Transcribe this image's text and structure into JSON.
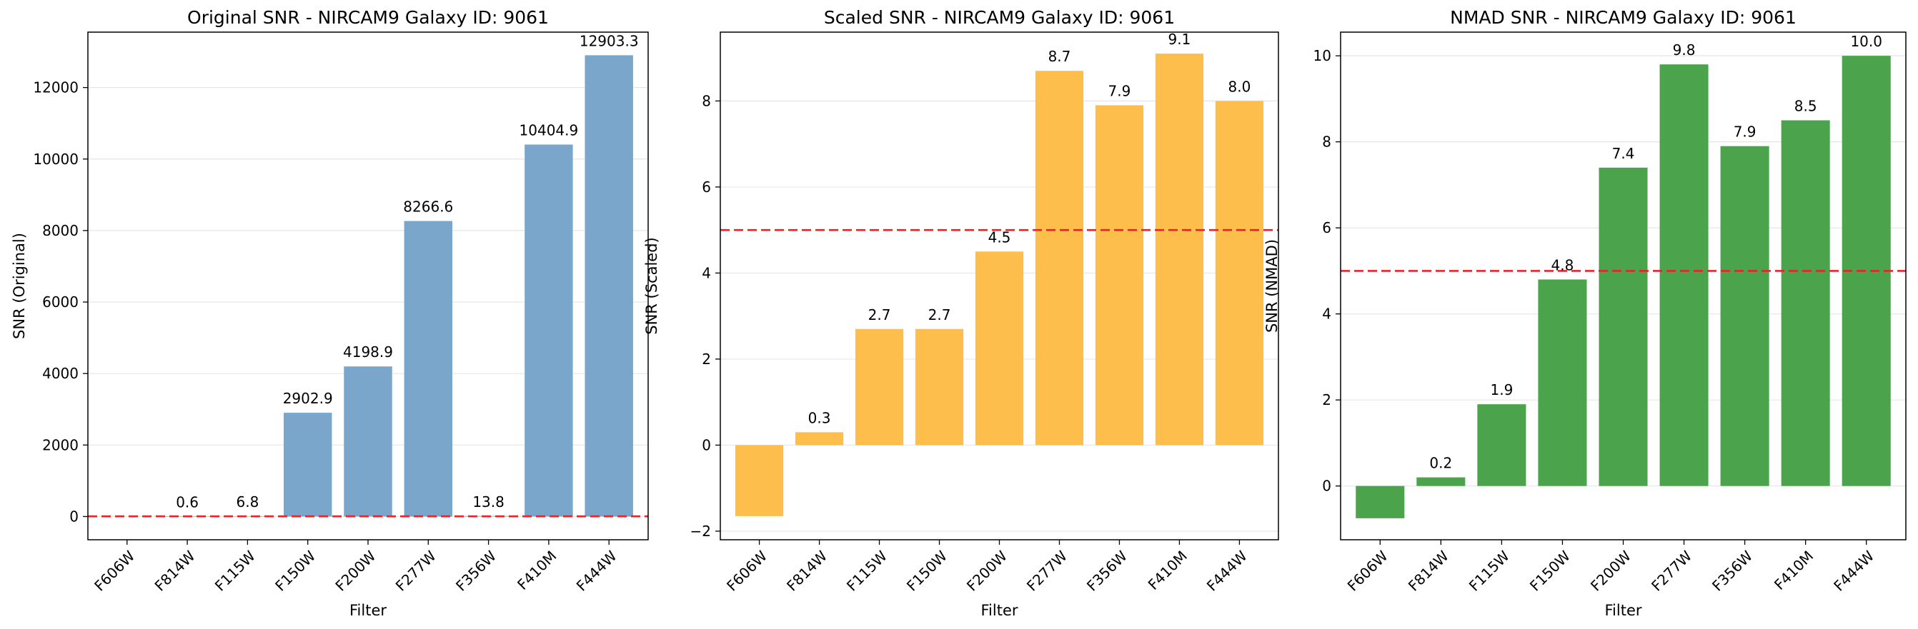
{
  "chart_data": [
    {
      "type": "bar",
      "title": "Original SNR - NIRCAM9 Galaxy ID: 9061",
      "xlabel": "Filter",
      "ylabel": "SNR (Original)",
      "categories": [
        "F606W",
        "F814W",
        "F115W",
        "F150W",
        "F200W",
        "F277W",
        "F356W",
        "F410M",
        "F444W"
      ],
      "values": [
        null,
        0.6,
        6.8,
        2902.9,
        4198.9,
        8266.6,
        13.8,
        10404.9,
        12903.3
      ],
      "data_labels": [
        "",
        "0.6",
        "6.8",
        "2902.9",
        "4198.9",
        "8266.6",
        "13.8",
        "10404.9",
        "12903.3"
      ],
      "ylim": [
        -650,
        13550
      ],
      "yticks": [
        0,
        2000,
        4000,
        6000,
        8000,
        10000,
        12000
      ],
      "ytick_labels": [
        "0",
        "2000",
        "4000",
        "6000",
        "8000",
        "10000",
        "12000"
      ],
      "threshold": 5,
      "bar_color": "#7ba6cc",
      "threshold_color": "#e8232a",
      "grid": true
    },
    {
      "type": "bar",
      "title": "Scaled SNR - NIRCAM9 Galaxy ID: 9061",
      "xlabel": "Filter",
      "ylabel": "SNR (Scaled)",
      "categories": [
        "F606W",
        "F814W",
        "F115W",
        "F150W",
        "F200W",
        "F277W",
        "F356W",
        "F410M",
        "F444W"
      ],
      "values": [
        -1.65,
        0.3,
        2.7,
        2.7,
        4.5,
        8.7,
        7.9,
        9.1,
        8.0
      ],
      "data_labels": [
        "",
        "0.3",
        "2.7",
        "2.7",
        "4.5",
        "8.7",
        "7.9",
        "9.1",
        "8.0"
      ],
      "ylim": [
        -2.2,
        9.6
      ],
      "yticks": [
        -2,
        0,
        2,
        4,
        6,
        8
      ],
      "ytick_labels": [
        "−2",
        "0",
        "2",
        "4",
        "6",
        "8"
      ],
      "threshold": 5,
      "bar_color": "#fdbe4c",
      "threshold_color": "#e8232a",
      "grid": true
    },
    {
      "type": "bar",
      "title": "NMAD SNR - NIRCAM9 Galaxy ID: 9061",
      "xlabel": "Filter",
      "ylabel": "SNR (NMAD)",
      "categories": [
        "F606W",
        "F814W",
        "F115W",
        "F150W",
        "F200W",
        "F277W",
        "F356W",
        "F410M",
        "F444W"
      ],
      "values": [
        -0.75,
        0.2,
        1.9,
        4.8,
        7.4,
        9.8,
        7.9,
        8.5,
        10.0
      ],
      "data_labels": [
        "",
        "0.2",
        "1.9",
        "4.8",
        "7.4",
        "9.8",
        "7.9",
        "8.5",
        "10.0"
      ],
      "ylim": [
        -1.25,
        10.55
      ],
      "yticks": [
        0,
        2,
        4,
        6,
        8,
        10
      ],
      "ytick_labels": [
        "0",
        "2",
        "4",
        "6",
        "8",
        "10"
      ],
      "threshold": 5,
      "bar_color": "#4ba34b",
      "threshold_color": "#e8232a",
      "grid": true
    }
  ]
}
